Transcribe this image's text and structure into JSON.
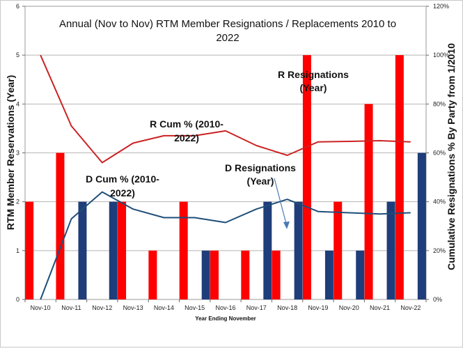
{
  "chart_data": {
    "type": "bar",
    "title_lines": [
      "Annual (Nov to Nov) RTM Member Resignations / Replacements 2010 to",
      "2022"
    ],
    "xlabel": "Year Ending November",
    "ylabel_left": "RTM Member Reservations (Year)",
    "ylabel_right": "Cumulative  Resignations % By Party from 1/2010",
    "categories": [
      "Nov-10",
      "Nov-11",
      "Nov-12",
      "Nov-13",
      "Nov-14",
      "Nov-15",
      "Nov-16",
      "Nov-17",
      "Nov-18",
      "Nov-19",
      "Nov-20",
      "Nov-21",
      "Nov-22"
    ],
    "ylim_left": [
      0,
      6
    ],
    "yticks_left": [
      "0",
      "1",
      "2",
      "3",
      "4",
      "5",
      "6"
    ],
    "ylim_right": [
      0,
      120
    ],
    "yticks_right": [
      "0%",
      "20%",
      "40%",
      "60%",
      "80%",
      "100%",
      "120%"
    ],
    "grid": true,
    "series": [
      {
        "name": "R Resignations (Year)",
        "kind": "bar",
        "axis": "left",
        "color": "#ff0000",
        "values": [
          2,
          3,
          0,
          2,
          1,
          2,
          1,
          1,
          1,
          5,
          2,
          4,
          5
        ]
      },
      {
        "name": "D Resignations (Year)",
        "kind": "bar",
        "axis": "left",
        "color": "#1f3d7a",
        "values": [
          0,
          2,
          2,
          0,
          0,
          1,
          0,
          2,
          2,
          1,
          1,
          2,
          3
        ]
      },
      {
        "name": "R Cum % (2010-2022)",
        "kind": "line",
        "axis": "right",
        "color": "#cc2222",
        "values": [
          100,
          71,
          56,
          64,
          67,
          67,
          69,
          63,
          59,
          64.5,
          64.7,
          65,
          64.5
        ]
      },
      {
        "name": "D Cum % (2010-2022)",
        "kind": "line",
        "axis": "right",
        "color": "#1f4e79",
        "values": [
          0,
          33,
          44,
          37,
          33.5,
          33.5,
          31.5,
          37,
          41,
          36,
          35.5,
          35,
          35.5
        ]
      }
    ],
    "annotations": [
      {
        "text_lines": [
          "R Resignations",
          "(Year)"
        ]
      },
      {
        "text_lines": [
          "R Cum % (2010-",
          "2022)"
        ]
      },
      {
        "text_lines": [
          "D Cum % (2010-",
          "2022)"
        ]
      },
      {
        "text_lines": [
          "D Resignations",
          "(Year)"
        ]
      }
    ]
  }
}
